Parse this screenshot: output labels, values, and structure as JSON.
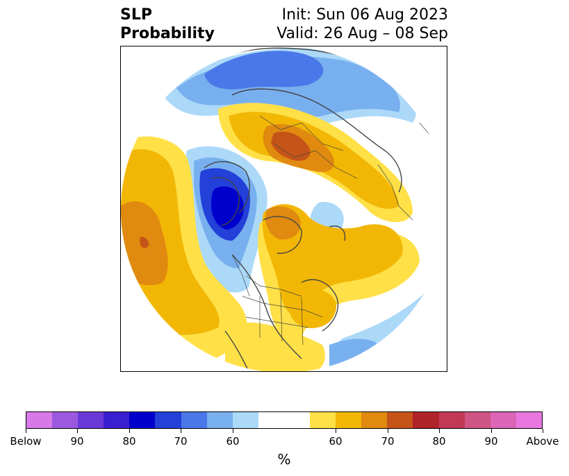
{
  "title": {
    "left_line1": "SLP",
    "left_line2": "Probability",
    "right_line1": "Init: Sun 06 Aug 2023",
    "right_line2": "Valid: 26 Aug – 08 Sep"
  },
  "map": {
    "projection": "north-polar-stereographic",
    "variable": "SLP probability",
    "colors": {
      "below_90": "#6b38d8",
      "below_80": "#0000cc",
      "below_70": "#2340d8",
      "below_60": "#78b0ef",
      "below_50": "#acd9f8",
      "neutral": "#ffffff",
      "above_50": "#ffe047",
      "above_60": "#f2b705",
      "above_70": "#e08a10",
      "above_80": "#c55418",
      "coast": "#444444"
    }
  },
  "colorbar": {
    "units": "%",
    "colors": [
      "#d779e8",
      "#9b59e0",
      "#6b38d8",
      "#3a1ed2",
      "#0000cc",
      "#2340d8",
      "#4a78e8",
      "#78b0ef",
      "#acd9f8",
      "#ffffff",
      "#ffffff",
      "#ffe047",
      "#f2b705",
      "#e08a10",
      "#c55418",
      "#b02328",
      "#c03a55",
      "#cf5584",
      "#db65b7",
      "#e878e0"
    ],
    "tick_labels": [
      "Below",
      "90",
      "80",
      "70",
      "60",
      "60",
      "70",
      "80",
      "90",
      "Above"
    ]
  }
}
